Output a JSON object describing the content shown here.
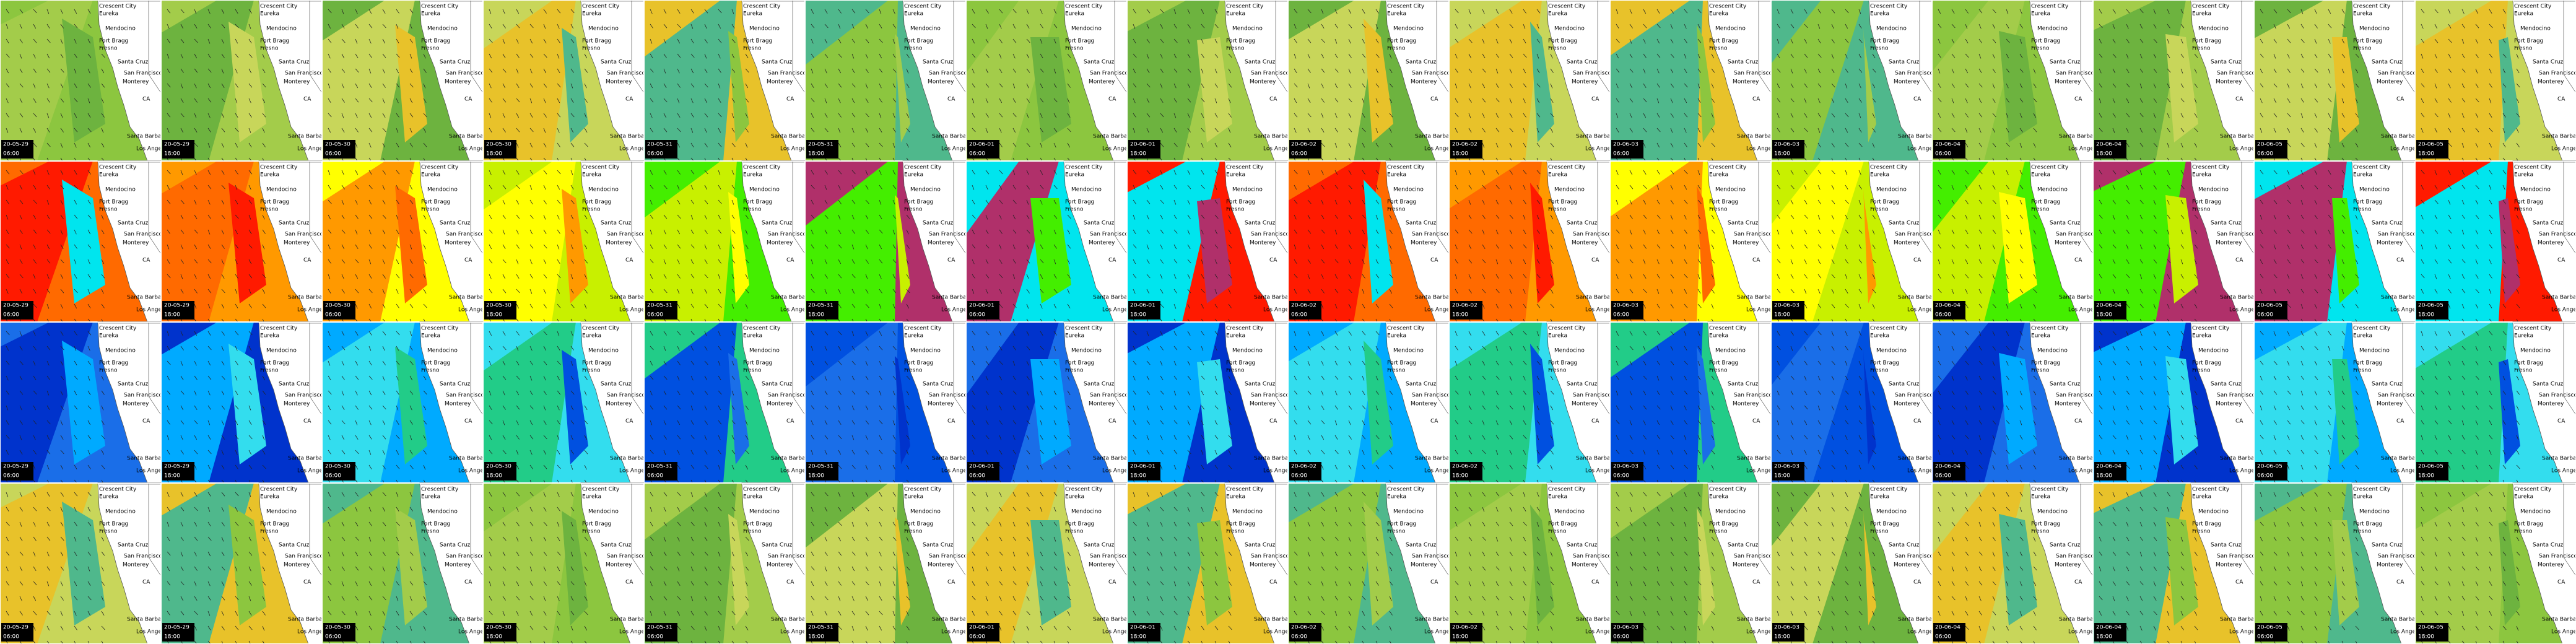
{
  "columns": [
    {
      "date": "20-05-29",
      "time": "06:00"
    },
    {
      "date": "20-05-29",
      "time": "18:00"
    },
    {
      "date": "20-05-30",
      "time": "06:00"
    },
    {
      "date": "20-05-30",
      "time": "18:00"
    },
    {
      "date": "20-05-31",
      "time": "06:00"
    },
    {
      "date": "20-05-31",
      "time": "18:00"
    },
    {
      "date": "20-06-01",
      "time": "06:00"
    },
    {
      "date": "20-06-01",
      "time": "18:00"
    },
    {
      "date": "20-06-02",
      "time": "06:00"
    },
    {
      "date": "20-06-02",
      "time": "18:00"
    },
    {
      "date": "20-06-03",
      "time": "06:00"
    },
    {
      "date": "20-06-03",
      "time": "18:00"
    },
    {
      "date": "20-06-04",
      "time": "06:00"
    },
    {
      "date": "20-06-04",
      "time": "18:00"
    },
    {
      "date": "20-06-05",
      "time": "06:00"
    },
    {
      "date": "20-06-05",
      "time": "18:00"
    }
  ],
  "map_labels": [
    "Crescent City",
    "Eureka",
    "Mendocino",
    "Fort Bragg",
    "Fresno",
    "Santa Cruz",
    "San Francisco",
    "Monterey",
    "CA",
    "Santa Barbara",
    "Los Angeles"
  ]
}
